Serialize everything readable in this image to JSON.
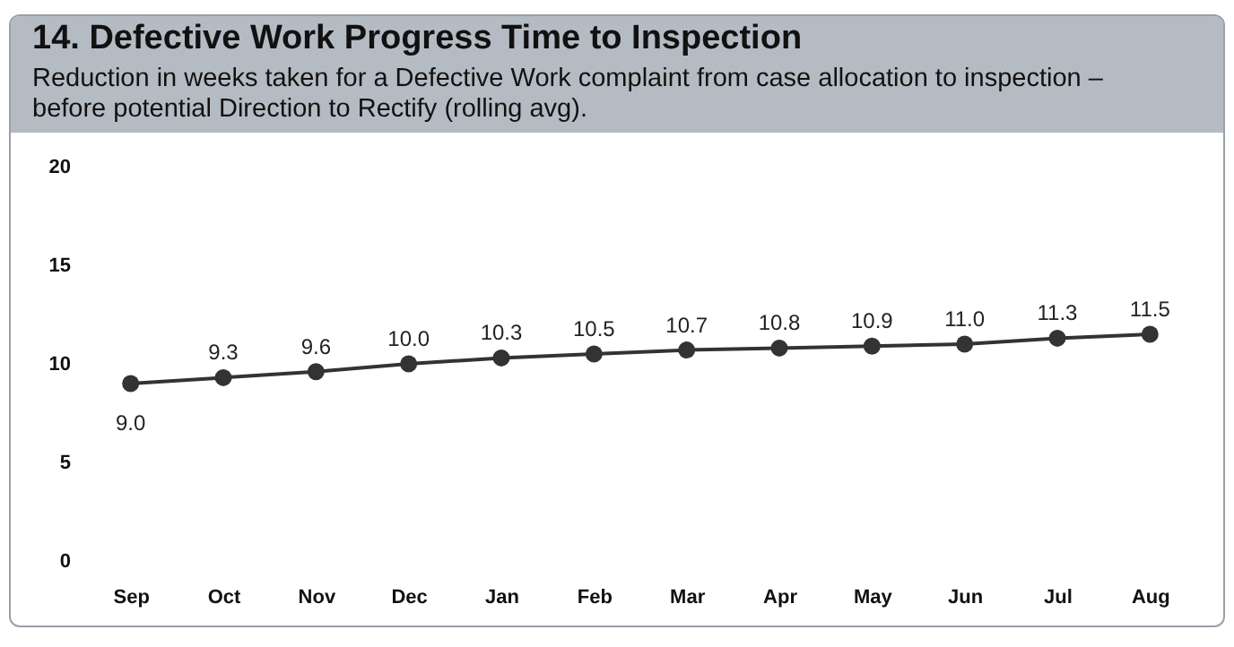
{
  "chart_data": {
    "type": "line",
    "title": "14. Defective Work Progress Time to Inspection",
    "subtitle": "Reduction in weeks taken for a Defective Work complaint from case allocation to inspection – before potential Direction to Rectify (rolling avg).",
    "categories": [
      "Sep",
      "Oct",
      "Nov",
      "Dec",
      "Jan",
      "Feb",
      "Mar",
      "Apr",
      "May",
      "Jun",
      "Jul",
      "Aug"
    ],
    "series": [
      {
        "color": "#333333",
        "values": [
          9.0,
          9.3,
          9.6,
          10.0,
          10.3,
          10.5,
          10.7,
          10.8,
          10.9,
          11.0,
          11.3,
          11.5
        ],
        "value_labels": [
          "9.0",
          "9.3",
          "9.6",
          "10.0",
          "10.3",
          "10.5",
          "10.7",
          "10.8",
          "10.9",
          "11.0",
          "11.3",
          "11.5"
        ]
      }
    ],
    "ylim": [
      0,
      20
    ],
    "yticks": [
      0,
      5,
      10,
      15,
      20
    ],
    "grid": false,
    "marker": "circle",
    "line_style": "solid"
  }
}
